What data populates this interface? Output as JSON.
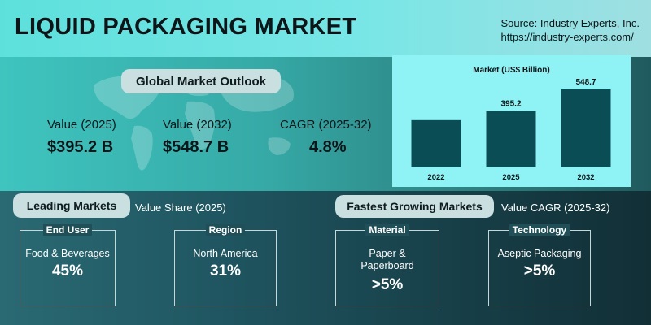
{
  "header": {
    "title": "LIQUID PACKAGING MARKET",
    "source_line1": "Source: Industry Experts, Inc.",
    "source_line2": "https://industry-experts.com/"
  },
  "outlook": {
    "heading": "Global Market Outlook",
    "stats": [
      {
        "label": "Value (2025)",
        "value": "$395.2 B"
      },
      {
        "label": "Value (2032)",
        "value": "$548.7 B"
      },
      {
        "label": "CAGR (2025-32)",
        "value": "4.8%"
      }
    ]
  },
  "chart_data": {
    "type": "bar",
    "title": "Market (US$ Billion)",
    "categories": [
      "2022",
      "2025",
      "2032"
    ],
    "values": [
      null,
      395.2,
      548.7
    ],
    "data_labels": [
      "",
      "395.2",
      "548.7"
    ],
    "estimated_values": [
      330,
      null,
      null
    ],
    "ylim": [
      0,
      600
    ],
    "grid": false,
    "bar_color": "#0a4d55"
  },
  "leading": {
    "heading": "Leading Markets",
    "sublabel": "Value Share (2025)",
    "cards": [
      {
        "head": "End User",
        "name": "Food & Beverages",
        "value": "45%"
      },
      {
        "head": "Region",
        "name": "North America",
        "value": "31%"
      }
    ]
  },
  "fastest": {
    "heading": "Fastest Growing Markets",
    "sublabel": "Value CAGR (2025-32)",
    "cards": [
      {
        "head": "Material",
        "name": "Paper & Paperboard",
        "value": ">5%"
      },
      {
        "head": "Technology",
        "name": "Aseptic Packaging",
        "value": ">5%"
      }
    ]
  },
  "colors": {
    "header_bg": "#78e6e6",
    "chart_bg": "#8ff3f5",
    "bar": "#0a4d55",
    "pill_bg": "#c9dfe0"
  }
}
